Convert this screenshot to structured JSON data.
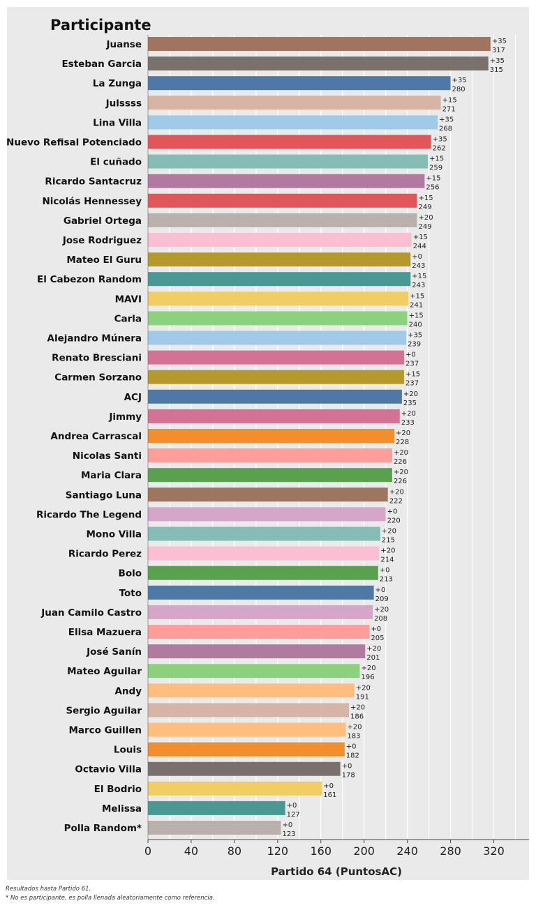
{
  "chart_data": {
    "type": "bar",
    "orientation": "horizontal",
    "title": "Participante",
    "xlabel": "Partido 64 (PuntosAC)",
    "xlim": [
      0,
      345
    ],
    "xticks": [
      0,
      40,
      80,
      120,
      160,
      200,
      240,
      280,
      320
    ],
    "grid": true,
    "legend": "none",
    "categories": [
      "Juanse",
      "Esteban Garcia",
      "La Zunga",
      "Julssss",
      "Lina Villa",
      "El Nuevo Refisal Potenciado",
      "El cuñado",
      "Ricardo Santacruz",
      "Nicolás Hennessey",
      "Gabriel Ortega",
      "Jose Rodriguez",
      "Mateo El Guru",
      "El Cabezon Random",
      "MAVI",
      "Carla",
      "Alejandro Múnera",
      "Renato Bresciani",
      "Carmen Sorzano",
      "ACJ",
      "Jimmy",
      "Andrea Carrascal",
      "Nicolas Santi",
      "Maria Clara",
      "Santiago Luna",
      "Ricardo The Legend",
      "Mono Villa",
      "Ricardo Perez",
      "Bolo",
      "Toto",
      "Juan Camilo Castro",
      "Elisa Mazuera",
      "José Sanín",
      "Mateo Aguilar",
      "Andy",
      "Sergio Aguilar",
      "Marco Guillen",
      "Louis",
      "Octavio Villa",
      "El Bodrio",
      "Melissa",
      "Polla Random*"
    ],
    "values": [
      317,
      315,
      280,
      271,
      268,
      262,
      259,
      256,
      249,
      249,
      244,
      243,
      243,
      241,
      240,
      239,
      237,
      237,
      235,
      233,
      228,
      226,
      226,
      222,
      220,
      215,
      214,
      213,
      209,
      208,
      205,
      201,
      196,
      191,
      186,
      183,
      182,
      178,
      161,
      127,
      123
    ],
    "increments": [
      "+35",
      "+35",
      "+35",
      "+15",
      "+35",
      "+35",
      "+15",
      "+15",
      "+15",
      "+20",
      "+15",
      "+0",
      "+15",
      "+15",
      "+15",
      "+35",
      "+0",
      "+15",
      "+20",
      "+20",
      "+20",
      "+20",
      "+20",
      "+20",
      "+0",
      "+20",
      "+20",
      "+0",
      "+0",
      "+20",
      "+0",
      "+20",
      "+20",
      "+20",
      "+20",
      "+20",
      "+0",
      "+0",
      "+0",
      "+0",
      "+0"
    ],
    "colors": [
      "#a0745e",
      "#7a706c",
      "#4e79a7",
      "#d7b5a6",
      "#a0cbe8",
      "#e15759",
      "#86bcb6",
      "#b07aa1",
      "#e15759",
      "#bab0ac",
      "#fabfd2",
      "#b6992d",
      "#499894",
      "#f1ce63",
      "#8cd17d",
      "#a0cbe8",
      "#d37295",
      "#b6992d",
      "#4e79a7",
      "#d37295",
      "#f28e2b",
      "#ff9d9a",
      "#59a14f",
      "#9d7660",
      "#d4a6c8",
      "#86bcb6",
      "#fabfd2",
      "#59a14f",
      "#4e79a7",
      "#d4a6c8",
      "#ff9d9a",
      "#b07aa1",
      "#8cd17d",
      "#ffbe7d",
      "#d7b5a6",
      "#ffbe7d",
      "#f28e2b",
      "#79706e",
      "#f1ce63",
      "#499894",
      "#bab0ac"
    ]
  },
  "footnotes": {
    "line1": "Resultados hasta Partido 61.",
    "line2": "* No es participante, es polla llenada aleatoriamente como  referencia."
  }
}
